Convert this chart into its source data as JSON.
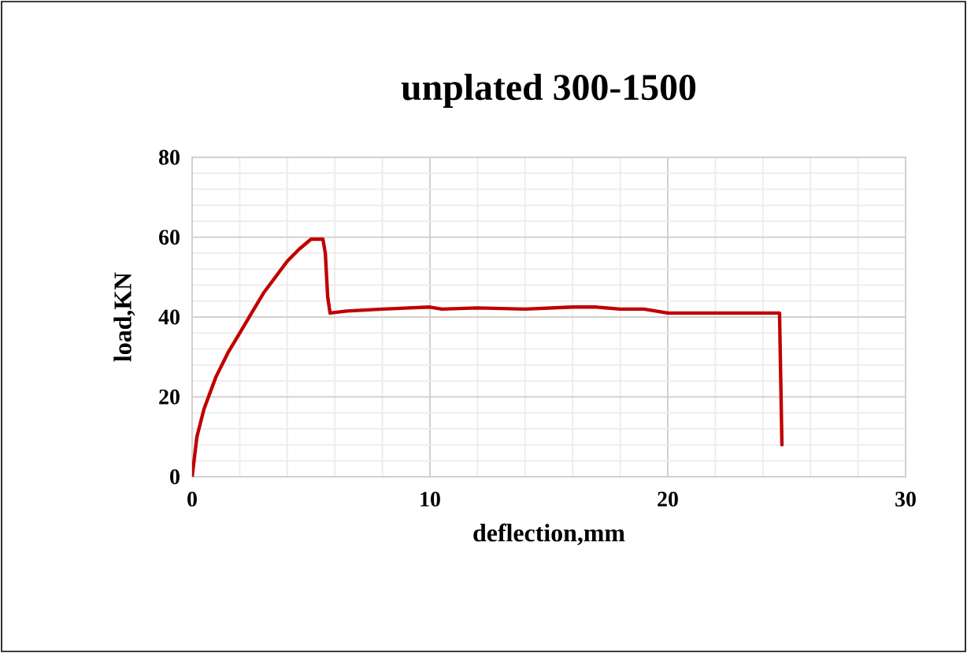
{
  "chart_data": {
    "type": "line",
    "title": "unplated 300-1500",
    "xlabel": "deflection,mm",
    "ylabel": "load,KN",
    "xlim": [
      0,
      30
    ],
    "ylim": [
      0,
      80
    ],
    "xticks": [
      0,
      10,
      20,
      30
    ],
    "yticks": [
      0,
      20,
      40,
      60,
      80
    ],
    "grid": true,
    "marker": "none",
    "line_style": "solid",
    "series": [
      {
        "color": "#c00000",
        "x": [
          0,
          0.2,
          0.5,
          1,
          1.5,
          2,
          2.5,
          3,
          3.5,
          4,
          4.5,
          5,
          5.5,
          5.6,
          5.7,
          5.8,
          6.5,
          8,
          10,
          10.5,
          12,
          14,
          16,
          17,
          18,
          19,
          19.5,
          20,
          22,
          24,
          24.7,
          24.8
        ],
        "values": [
          0,
          10,
          17,
          25,
          31,
          36,
          41,
          46,
          50,
          54,
          57,
          59.5,
          59.5,
          56,
          45,
          41,
          41.5,
          42,
          42.5,
          42,
          42.3,
          42,
          42.5,
          42.5,
          42,
          42,
          41.5,
          41,
          41,
          41,
          41,
          8
        ]
      }
    ]
  }
}
